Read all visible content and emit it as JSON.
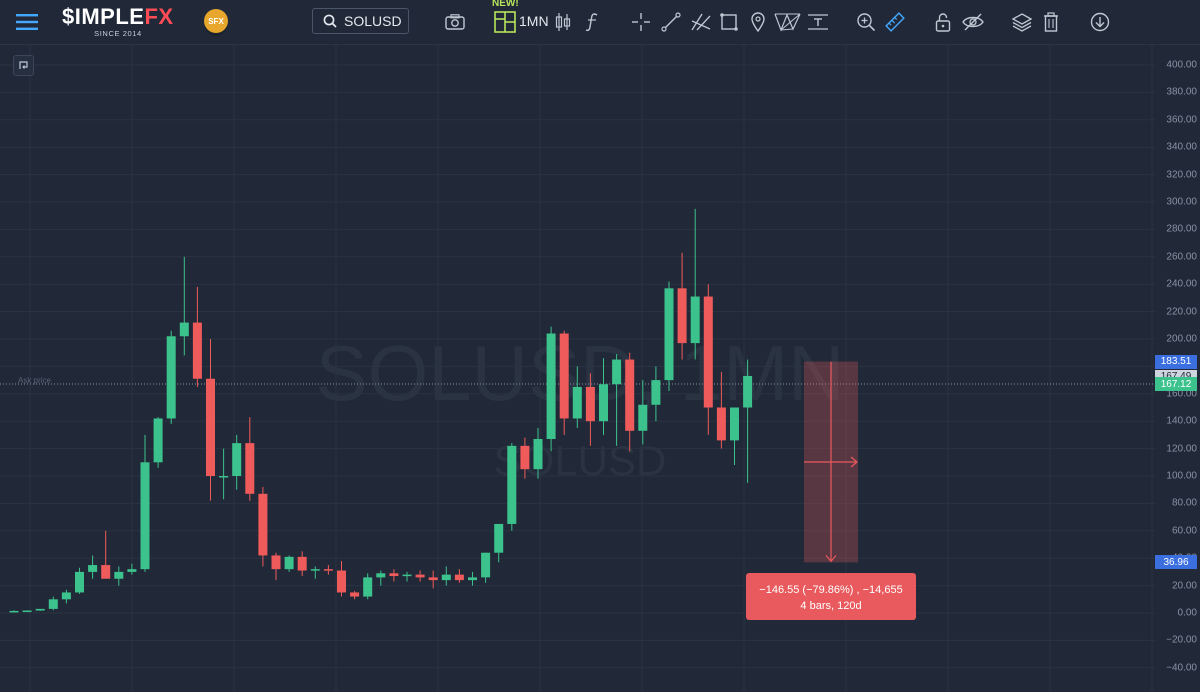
{
  "header": {
    "menu_icon": "hamburger-icon",
    "logo_text": "$IMPLE",
    "logo_text_accent": "FX",
    "logo_tagline": "SINCE 2014",
    "badge": "SFX",
    "symbol": "SOLUSD",
    "new_badge": "NEW!",
    "timeframe": "1MN",
    "tool_icons": [
      "camera-icon",
      "layout-icon",
      "candles-icon",
      "function-icon",
      "crosshair-icon",
      "trend-line-icon",
      "pitchfork-icon",
      "rectangle-icon",
      "marker-icon",
      "pattern-icon",
      "text-icon",
      "zoom-in-icon",
      "ruler-icon",
      "lock-icon",
      "hide-icon",
      "layers-icon",
      "trash-icon",
      "download-icon"
    ]
  },
  "chart": {
    "watermark_main": "SOLUSD, 1MN",
    "watermark_sub": "SOLUSD",
    "ask_label": "Ask price",
    "colors": {
      "up": "#3cc28c",
      "down": "#ef5a5a",
      "bg": "#212938",
      "grid": "#2a3342"
    }
  },
  "price_axis": {
    "labels": [
      "400.00",
      "380.00",
      "360.00",
      "340.00",
      "320.00",
      "300.00",
      "280.00",
      "260.00",
      "240.00",
      "220.00",
      "200.00",
      "180.00",
      "160.00",
      "140.00",
      "120.00",
      "100.00",
      "80.00",
      "60.00",
      "40.00",
      "20.00",
      "0.00",
      "−20.00",
      "−40.00"
    ],
    "tags": [
      {
        "value": "183.51",
        "price": 183.51,
        "color": "#3b6fe0"
      },
      {
        "value": "167.49",
        "price": 172.5,
        "color": "#cfd5de"
      },
      {
        "value": "167.12",
        "price": 167.12,
        "color": "#3cc28c"
      },
      {
        "value": "36.96",
        "price": 36.96,
        "color": "#3b6fe0"
      }
    ]
  },
  "measure": {
    "line1": "−146.55 (−79.86%) , −14,655",
    "line2": "4 bars, 120d",
    "from_price": 183.51,
    "to_price": 36.96
  },
  "chart_data": {
    "type": "candlestick",
    "symbol": "SOLUSD",
    "timeframe": "1MN",
    "ylim": [
      -50,
      405
    ],
    "candles": [
      [
        1.5,
        2,
        1,
        1.5
      ],
      [
        1.5,
        2,
        1,
        1.8
      ],
      [
        1.8,
        3,
        1.5,
        3
      ],
      [
        3,
        12,
        2,
        10
      ],
      [
        10,
        17,
        7,
        15
      ],
      [
        15,
        33,
        14,
        30
      ],
      [
        30,
        42,
        25,
        35
      ],
      [
        35,
        60,
        28,
        25
      ],
      [
        25,
        34,
        20,
        30
      ],
      [
        30,
        36,
        28,
        32
      ],
      [
        32,
        130,
        30,
        110
      ],
      [
        110,
        143,
        106,
        142
      ],
      [
        142,
        206,
        138,
        202
      ],
      [
        202,
        260,
        188,
        212
      ],
      [
        212,
        238,
        165,
        171
      ],
      [
        171,
        200,
        82,
        100
      ],
      [
        100,
        120,
        83,
        100
      ],
      [
        100,
        130,
        90,
        124
      ],
      [
        124,
        143,
        82,
        87
      ],
      [
        87,
        92,
        34,
        42
      ],
      [
        42,
        44,
        24,
        32
      ],
      [
        32,
        42,
        30,
        41
      ],
      [
        41,
        45,
        27,
        31
      ],
      [
        31,
        34,
        25,
        32
      ],
      [
        32,
        35,
        28,
        31
      ],
      [
        31,
        38,
        12,
        15
      ],
      [
        15,
        16,
        10,
        12
      ],
      [
        12,
        29,
        10,
        26
      ],
      [
        26,
        31,
        20,
        29
      ],
      [
        29,
        32,
        23,
        27
      ],
      [
        27,
        30,
        23,
        28
      ],
      [
        28,
        31,
        23,
        26
      ],
      [
        26,
        31,
        18,
        24
      ],
      [
        24,
        34,
        20,
        28
      ],
      [
        28,
        32,
        22,
        24
      ],
      [
        24,
        30,
        20,
        26
      ],
      [
        26,
        44,
        22,
        44
      ],
      [
        44,
        65,
        37,
        65
      ],
      [
        65,
        124,
        60,
        122
      ],
      [
        122,
        128,
        98,
        105
      ],
      [
        105,
        135,
        98,
        127
      ],
      [
        127,
        209,
        118,
        204
      ],
      [
        204,
        206,
        130,
        142
      ],
      [
        142,
        180,
        135,
        165
      ],
      [
        165,
        175,
        122,
        140
      ],
      [
        140,
        186,
        130,
        167
      ],
      [
        167,
        189,
        122,
        185
      ],
      [
        185,
        190,
        118,
        133
      ],
      [
        133,
        170,
        123,
        152
      ],
      [
        152,
        180,
        140,
        170
      ],
      [
        170,
        242,
        162,
        237
      ],
      [
        237,
        263,
        185,
        197
      ],
      [
        197,
        295,
        185,
        231
      ],
      [
        231,
        240,
        130,
        150
      ],
      [
        150,
        176,
        120,
        126
      ],
      [
        126,
        150,
        108,
        150
      ],
      [
        150,
        185,
        95,
        173
      ]
    ]
  }
}
